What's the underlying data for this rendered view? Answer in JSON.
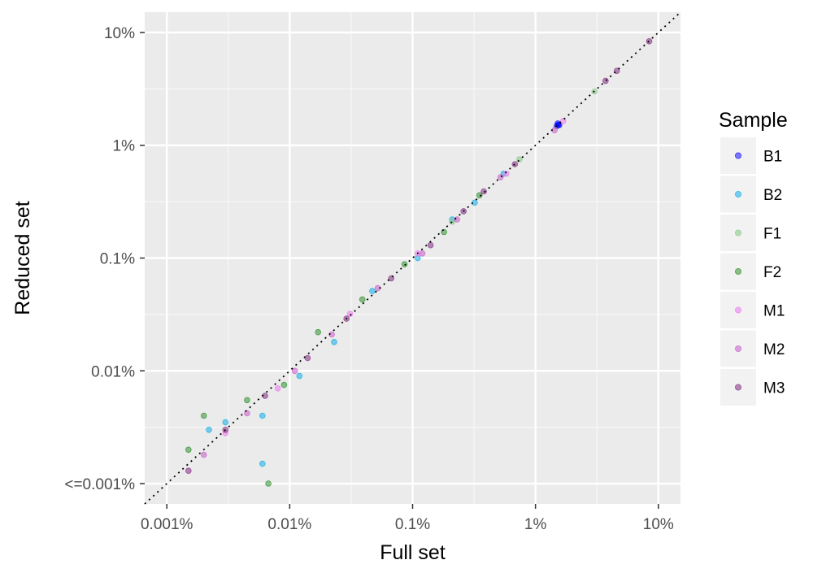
{
  "chart_data": {
    "type": "scatter",
    "title": "",
    "xlabel": "Full set",
    "ylabel": "Reduced set",
    "x_scale": "log10",
    "y_scale": "log10",
    "xlim_log10": [
      -5.18,
      -0.82
    ],
    "ylim_log10": [
      -5.18,
      -0.82
    ],
    "x_ticks": [
      {
        "value": 1e-05,
        "label": "0.001%"
      },
      {
        "value": 0.0001,
        "label": "0.01%"
      },
      {
        "value": 0.001,
        "label": "0.1%"
      },
      {
        "value": 0.01,
        "label": "1%"
      },
      {
        "value": 0.1,
        "label": "10%"
      }
    ],
    "y_ticks": [
      {
        "value": 1e-05,
        "label": "<=0.001%"
      },
      {
        "value": 0.0001,
        "label": "0.01%"
      },
      {
        "value": 0.001,
        "label": "0.1%"
      },
      {
        "value": 0.01,
        "label": "1%"
      },
      {
        "value": 0.1,
        "label": "10%"
      }
    ],
    "reference_line": "y = x (dotted)",
    "grid": true,
    "legend": {
      "title": "Sample",
      "position": "right"
    },
    "series": [
      {
        "name": "B1",
        "color": "#0000ff",
        "opacity": 0.5,
        "points": [
          [
            0.0153,
            0.0152
          ],
          [
            0.0156,
            0.0151
          ],
          [
            0.0149,
            0.0148
          ],
          [
            0.0152,
            0.0156
          ]
        ]
      },
      {
        "name": "B2",
        "color": "#00a8e6",
        "opacity": 0.5,
        "points": [
          [
            0.0055,
            0.0056
          ],
          [
            0.0032,
            0.0031
          ],
          [
            0.0021,
            0.0022
          ],
          [
            0.0011,
            0.001
          ],
          [
            0.00047,
            0.00051
          ],
          [
            0.00023,
            0.00018
          ],
          [
            0.00012,
            9e-05
          ],
          [
            6e-05,
            4e-05
          ],
          [
            3e-05,
            3.5e-05
          ],
          [
            6e-05,
            1.5e-05
          ],
          [
            2.2e-05,
            3e-05
          ]
        ]
      },
      {
        "name": "F1",
        "color": "#8fc98f",
        "opacity": 0.6,
        "points": [
          [
            0.0302,
            0.03
          ],
          [
            0.0074,
            0.0075
          ],
          [
            0.0021,
            0.0021
          ]
        ]
      },
      {
        "name": "F2",
        "color": "#1f8a1f",
        "opacity": 0.5,
        "points": [
          [
            0.0035,
            0.0036
          ],
          [
            0.0018,
            0.0017
          ],
          [
            0.00086,
            0.00088
          ],
          [
            0.00039,
            0.00043
          ],
          [
            0.00017,
            0.00022
          ],
          [
            9e-05,
            7.5e-05
          ],
          [
            4.5e-05,
            5.5e-05
          ],
          [
            2e-05,
            4e-05
          ],
          [
            6.7e-05,
            1e-05
          ],
          [
            1.5e-05,
            2e-05
          ]
        ]
      },
      {
        "name": "M1",
        "color": "#ee82ee",
        "opacity": 0.6,
        "points": [
          [
            0.0168,
            0.0164
          ],
          [
            0.0058,
            0.0056
          ],
          [
            0.0011,
            0.0011
          ],
          [
            0.00031,
            0.00032
          ],
          [
            8e-05,
            7e-05
          ],
          [
            3e-05,
            2.8e-05
          ]
        ]
      },
      {
        "name": "M2",
        "color": "#cc66cc",
        "opacity": 0.6,
        "points": [
          [
            0.0143,
            0.0136
          ],
          [
            0.0052,
            0.0052
          ],
          [
            0.0023,
            0.0022
          ],
          [
            0.0012,
            0.0011
          ],
          [
            0.00052,
            0.00054
          ],
          [
            0.00022,
            0.00021
          ],
          [
            0.00011,
            0.0001
          ],
          [
            4.5e-05,
            4.2e-05
          ],
          [
            2e-05,
            1.8e-05
          ]
        ]
      },
      {
        "name": "M3",
        "color": "#8b3a8b",
        "opacity": 0.6,
        "points": [
          [
            0.0842,
            0.0835
          ],
          [
            0.0459,
            0.0457
          ],
          [
            0.0372,
            0.0373
          ],
          [
            0.0068,
            0.0068
          ],
          [
            0.0038,
            0.0039
          ],
          [
            0.0026,
            0.0026
          ],
          [
            0.0014,
            0.0013
          ],
          [
            0.00067,
            0.00066
          ],
          [
            0.00029,
            0.00029
          ],
          [
            0.00014,
            0.00013
          ],
          [
            6.3e-05,
            6e-05
          ],
          [
            3e-05,
            3e-05
          ],
          [
            1.5e-05,
            1.3e-05
          ]
        ]
      }
    ]
  }
}
